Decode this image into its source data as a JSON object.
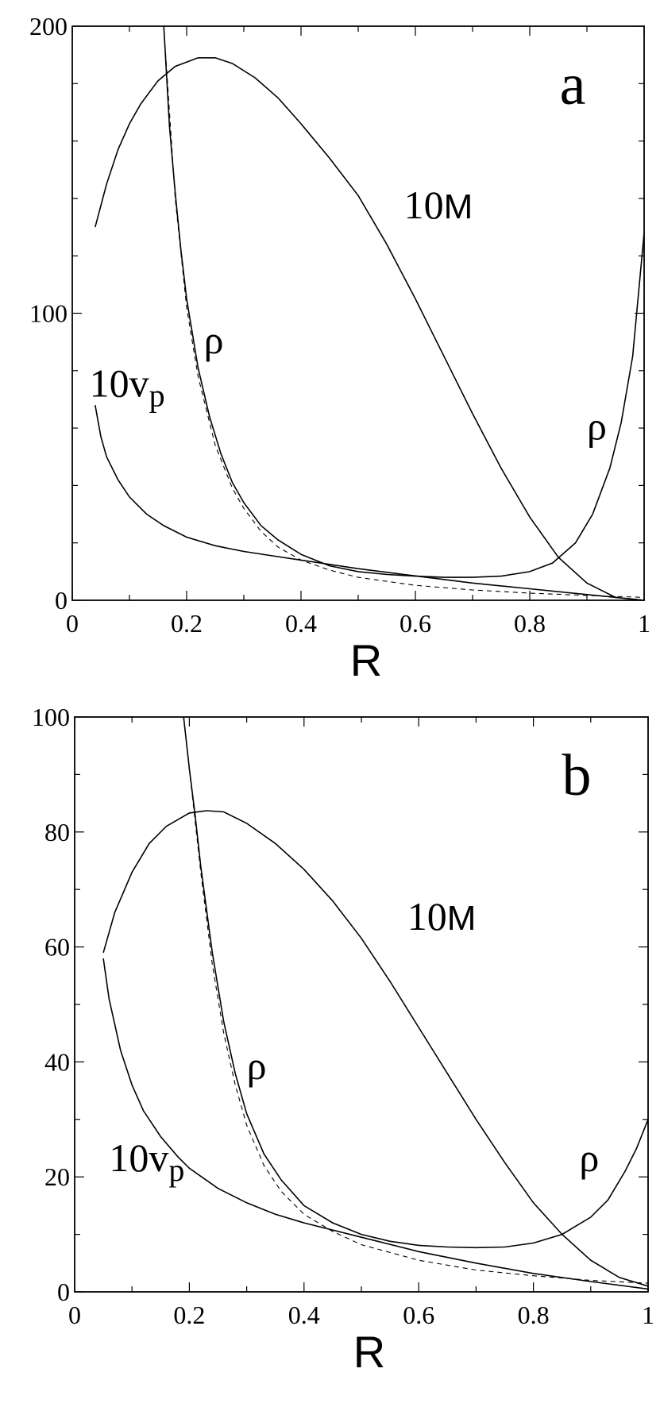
{
  "chart_data": [
    {
      "type": "line",
      "panel_letter": "a",
      "xlabel": "R",
      "ylabel": "",
      "xlim": [
        0,
        1
      ],
      "ylim": [
        0,
        200
      ],
      "x_ticks": [
        "0",
        "0.2",
        "0.4",
        "0.6",
        "0.8",
        "1"
      ],
      "y_ticks": [
        "0",
        "100",
        "200"
      ],
      "grid": false,
      "series": [
        {
          "name": "10M",
          "style": "solid",
          "x": [
            0.04,
            0.06,
            0.08,
            0.1,
            0.12,
            0.15,
            0.18,
            0.22,
            0.25,
            0.28,
            0.32,
            0.36,
            0.4,
            0.45,
            0.5,
            0.55,
            0.6,
            0.65,
            0.7,
            0.75,
            0.8,
            0.85,
            0.9,
            0.95,
            1.0
          ],
          "y": [
            130,
            145,
            157,
            166,
            173,
            181,
            186,
            189,
            189,
            187,
            182,
            175,
            166,
            154,
            141,
            124,
            105,
            85,
            65,
            46,
            29,
            15,
            6,
            1,
            0
          ]
        },
        {
          "name": "ρ",
          "style": "solid",
          "x": [
            0.16,
            0.17,
            0.18,
            0.19,
            0.2,
            0.22,
            0.24,
            0.26,
            0.28,
            0.3,
            0.33,
            0.36,
            0.4,
            0.45,
            0.5,
            0.55,
            0.6,
            0.65,
            0.7,
            0.75,
            0.8,
            0.84,
            0.88,
            0.91,
            0.94,
            0.96,
            0.98,
            1.0
          ],
          "y": [
            200,
            165,
            142,
            122,
            105,
            81,
            64,
            51,
            41,
            34,
            26,
            21,
            16,
            12,
            10,
            9,
            8.4,
            8,
            8,
            8.4,
            10,
            13,
            20,
            30,
            46,
            62,
            85,
            128
          ]
        },
        {
          "name": "10v_p",
          "style": "solid",
          "x": [
            0.04,
            0.05,
            0.06,
            0.08,
            0.1,
            0.13,
            0.16,
            0.2,
            0.25,
            0.3,
            0.35,
            0.4,
            0.5,
            0.6,
            0.7,
            0.8,
            0.9,
            1.0
          ],
          "y": [
            68,
            57,
            50,
            42,
            36,
            30,
            26,
            22,
            19,
            17,
            15.5,
            14,
            11,
            8.5,
            6,
            4,
            2,
            0
          ]
        },
        {
          "name": "",
          "style": "dashed",
          "x": [
            0.16,
            0.18,
            0.2,
            0.22,
            0.25,
            0.28,
            0.3,
            0.33,
            0.36,
            0.4,
            0.45,
            0.5,
            0.6,
            0.7,
            0.8,
            0.9,
            1.0
          ],
          "y": [
            200,
            140,
            102,
            78,
            54,
            39,
            32,
            24,
            18.5,
            14,
            10.5,
            8,
            5.2,
            3.6,
            2.5,
            1.7,
            1.0
          ]
        }
      ],
      "annotations": [
        {
          "text": "10",
          "sub": "M",
          "x": 0.58,
          "y": 133
        },
        {
          "text": "ρ",
          "x": 0.23,
          "y": 86
        },
        {
          "text": "10v",
          "sub": "p",
          "x": 0.03,
          "y": 71
        },
        {
          "text": "ρ",
          "x": 0.9,
          "y": 56
        }
      ]
    },
    {
      "type": "line",
      "panel_letter": "b",
      "xlabel": "R",
      "ylabel": "",
      "xlim": [
        0,
        1
      ],
      "ylim": [
        0,
        100
      ],
      "x_ticks": [
        "0",
        "0.2",
        "0.4",
        "0.6",
        "0.8",
        "1"
      ],
      "y_ticks": [
        "0",
        "20",
        "40",
        "60",
        "80",
        "100"
      ],
      "grid": false,
      "series": [
        {
          "name": "10M",
          "style": "solid",
          "x": [
            0.05,
            0.07,
            0.1,
            0.13,
            0.16,
            0.2,
            0.23,
            0.26,
            0.3,
            0.35,
            0.4,
            0.45,
            0.5,
            0.55,
            0.6,
            0.65,
            0.7,
            0.75,
            0.8,
            0.85,
            0.9,
            0.95,
            1.0
          ],
          "y": [
            59,
            66,
            73,
            78,
            81,
            83.3,
            83.7,
            83.5,
            81.5,
            78,
            73.5,
            68,
            61.5,
            54,
            46,
            38,
            30,
            22.5,
            15.5,
            10,
            5.5,
            2.5,
            1
          ]
        },
        {
          "name": "ρ",
          "style": "solid",
          "x": [
            0.19,
            0.2,
            0.21,
            0.22,
            0.24,
            0.26,
            0.28,
            0.3,
            0.33,
            0.36,
            0.4,
            0.45,
            0.5,
            0.55,
            0.6,
            0.65,
            0.7,
            0.75,
            0.8,
            0.85,
            0.9,
            0.93,
            0.96,
            0.98,
            1.0
          ],
          "y": [
            100,
            91,
            83,
            74,
            59,
            47,
            38,
            31,
            24,
            19.5,
            15,
            12,
            10,
            8.8,
            8.1,
            7.8,
            7.7,
            7.8,
            8.5,
            10,
            13,
            16,
            21,
            25,
            30
          ]
        },
        {
          "name": "10v_p",
          "style": "solid",
          "x": [
            0.05,
            0.06,
            0.08,
            0.1,
            0.12,
            0.15,
            0.18,
            0.2,
            0.25,
            0.3,
            0.35,
            0.4,
            0.5,
            0.6,
            0.7,
            0.8,
            0.9,
            1.0
          ],
          "y": [
            58,
            51,
            42,
            36,
            31.5,
            27,
            23.5,
            21.5,
            18,
            15.5,
            13.5,
            12,
            9.5,
            7,
            5,
            3.2,
            1.8,
            0.5
          ]
        },
        {
          "name": "",
          "style": "dashed",
          "x": [
            0.19,
            0.2,
            0.21,
            0.22,
            0.24,
            0.26,
            0.28,
            0.3,
            0.33,
            0.36,
            0.4,
            0.45,
            0.5,
            0.6,
            0.7,
            0.8,
            0.9,
            1.0
          ],
          "y": [
            100,
            91,
            82,
            73,
            57,
            45,
            36,
            29,
            22,
            17.5,
            13.5,
            10.5,
            8.2,
            5.5,
            3.8,
            2.8,
            2.0,
            1.5
          ]
        }
      ],
      "annotations": [
        {
          "text": "10",
          "sub": "M",
          "x": 0.58,
          "y": 63
        },
        {
          "text": "ρ",
          "x": 0.3,
          "y": 37
        },
        {
          "text": "10v",
          "sub": "p",
          "x": 0.06,
          "y": 21
        },
        {
          "text": "ρ",
          "x": 0.88,
          "y": 21
        }
      ]
    }
  ]
}
